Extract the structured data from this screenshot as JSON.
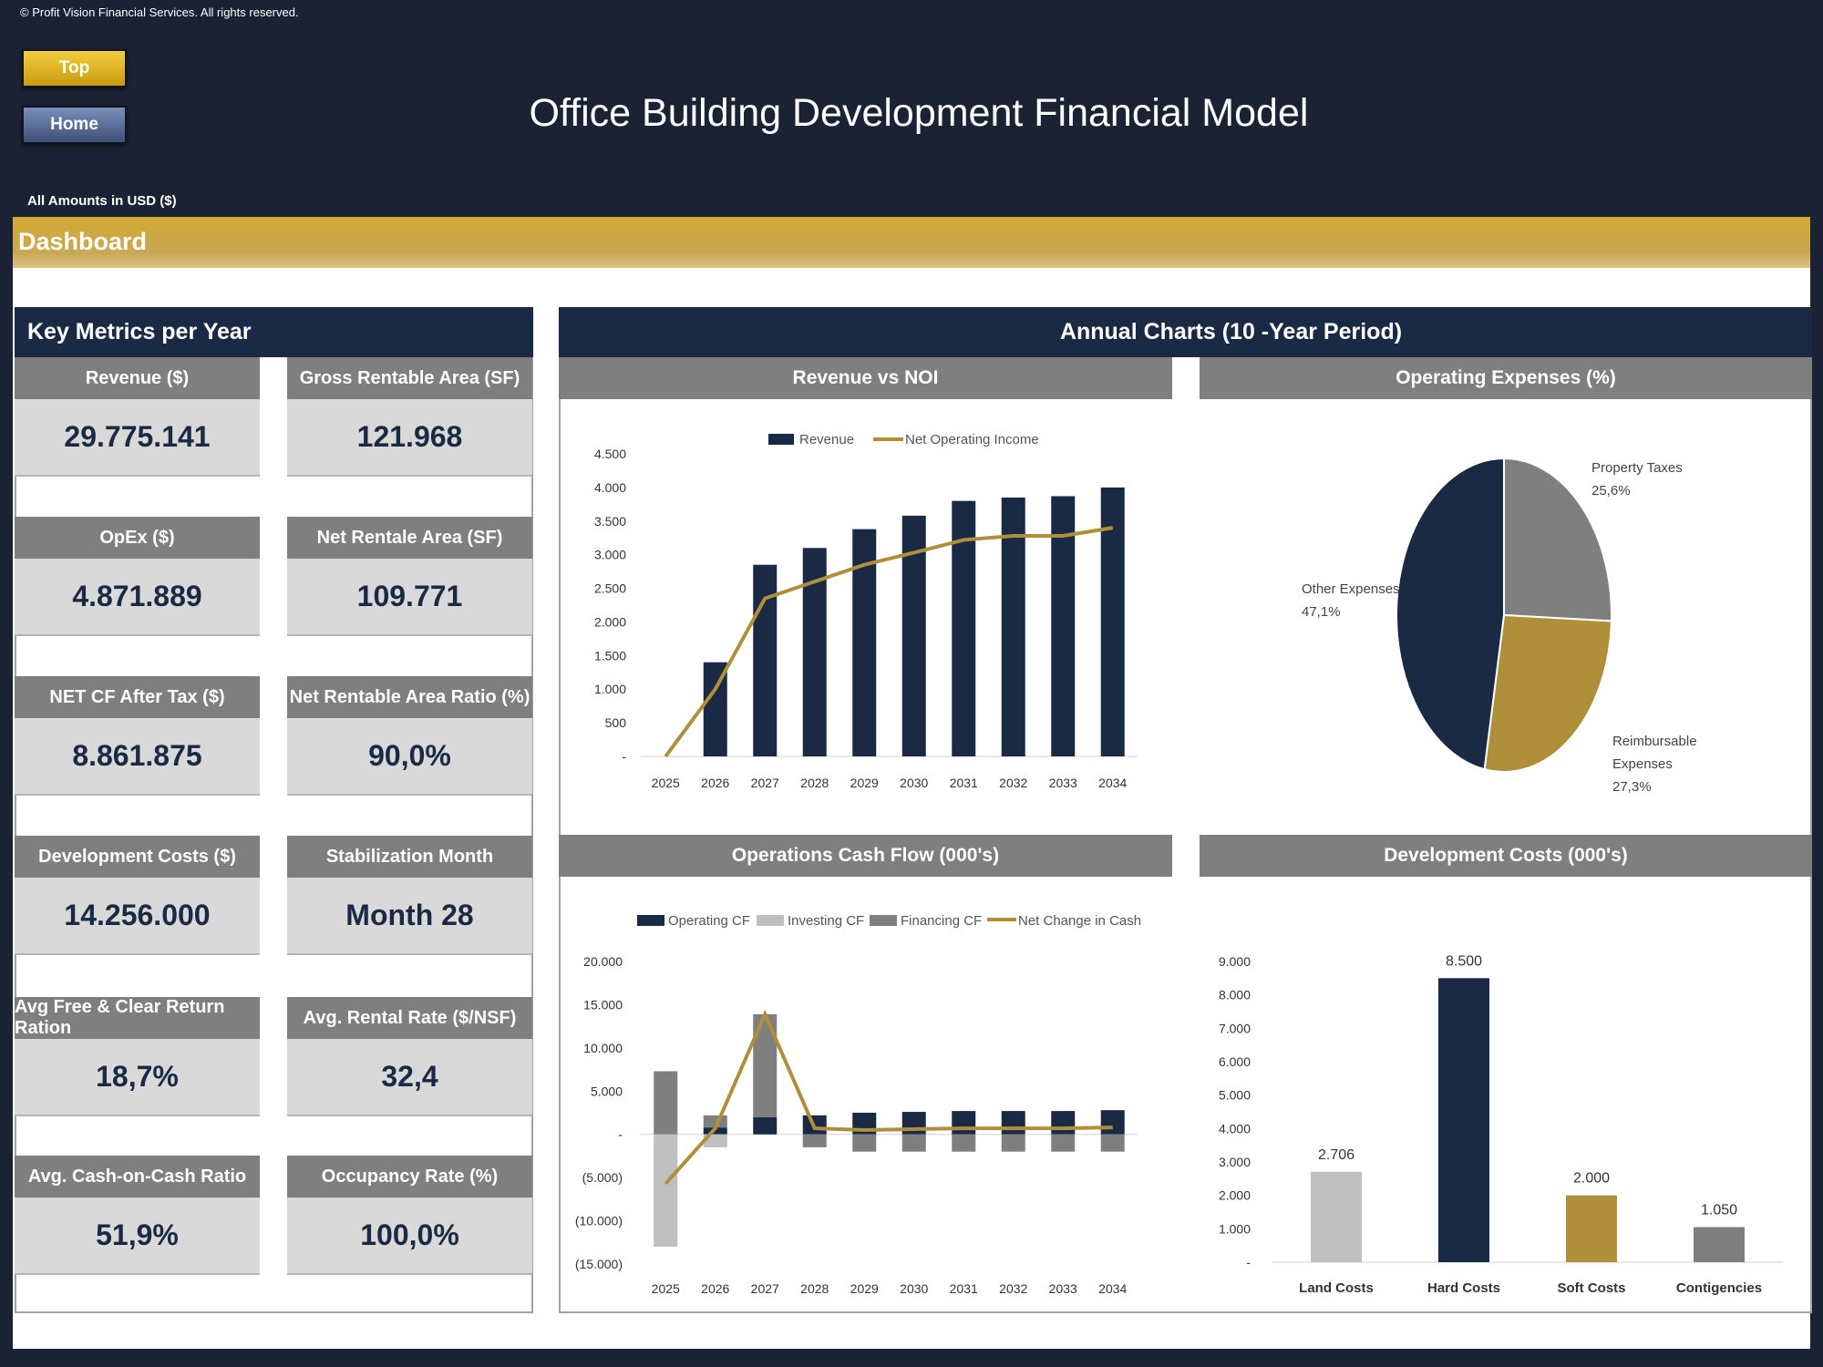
{
  "copyright": "© Profit Vision Financial Services. All rights reserved.",
  "buttons": {
    "top": "Top",
    "home": "Home"
  },
  "title": "Office Building Development Financial Model",
  "amounts_note": "All Amounts in  USD ($)",
  "dashboard_label": "Dashboard",
  "key_metrics": {
    "header": "Key Metrics per Year",
    "items": [
      {
        "label": "Revenue ($)",
        "value": "29.775.141"
      },
      {
        "label": "Gross Rentable Area (SF)",
        "value": "121.968"
      },
      {
        "label": "OpEx ($)",
        "value": "4.871.889"
      },
      {
        "label": "Net Rentale Area (SF)",
        "value": "109.771"
      },
      {
        "label": "NET CF After Tax ($)",
        "value": "8.861.875"
      },
      {
        "label": "Net Rentable Area Ratio (%)",
        "value": "90,0%"
      },
      {
        "label": "Development Costs ($)",
        "value": "14.256.000"
      },
      {
        "label": "Stabilization Month",
        "value": "Month 28"
      },
      {
        "label": "Avg Free & Clear Return Ration",
        "value": "18,7%"
      },
      {
        "label": "Avg. Rental Rate ($/NSF)",
        "value": "32,4"
      },
      {
        "label": "Avg. Cash-on-Cash Ratio",
        "value": "51,9%"
      },
      {
        "label": "Occupancy Rate (%)",
        "value": "100,0%"
      }
    ]
  },
  "annual_charts_header": "Annual Charts (10 -Year Period)",
  "colors": {
    "navy": "#1b2a44",
    "gold": "#b08f3a",
    "gray": "#7f7f7f",
    "lightgray": "#bfbfbf"
  },
  "chart_data": [
    {
      "id": "revenue_noi",
      "type": "bar",
      "title": "Revenue vs NOI",
      "categories": [
        "2025",
        "2026",
        "2027",
        "2028",
        "2029",
        "2030",
        "2031",
        "2032",
        "2033",
        "2034"
      ],
      "series": [
        {
          "name": "Revenue",
          "type": "bar",
          "values": [
            0,
            1400,
            2850,
            3100,
            3380,
            3580,
            3800,
            3850,
            3870,
            4000
          ]
        },
        {
          "name": "Net Operating Income",
          "type": "line",
          "values": [
            0,
            1000,
            2350,
            2600,
            2850,
            3030,
            3220,
            3280,
            3280,
            3400
          ]
        }
      ],
      "ylim": [
        0,
        4500
      ],
      "yticks": [
        0,
        500,
        1000,
        1500,
        2000,
        2500,
        3000,
        3500,
        4000,
        4500
      ],
      "ytick_labels": [
        "-",
        "500",
        "1.000",
        "1.500",
        "2.000",
        "2.500",
        "3.000",
        "3.500",
        "4.000",
        "4.500"
      ],
      "legend": "top"
    },
    {
      "id": "opex_pie",
      "type": "pie",
      "title": "Operating Expenses (%)",
      "slices": [
        {
          "label": "Property Taxes",
          "value": 25.6,
          "display": "25,6%"
        },
        {
          "label": "Reimbursable Expenses",
          "value": 27.3,
          "display": "27,3%"
        },
        {
          "label": "Other Expenses",
          "value": 47.1,
          "display": "47,1%"
        }
      ]
    },
    {
      "id": "ops_cash_flow",
      "type": "bar",
      "title": "Operations Cash Flow (000's)",
      "categories": [
        "2025",
        "2026",
        "2027",
        "2028",
        "2029",
        "2030",
        "2031",
        "2032",
        "2033",
        "2034"
      ],
      "series": [
        {
          "name": "Operating CF",
          "type": "bar",
          "values": [
            0,
            800,
            2000,
            2200,
            2500,
            2600,
            2700,
            2700,
            2700,
            2800
          ]
        },
        {
          "name": "Investing CF",
          "type": "bar",
          "values": [
            -13000,
            -1500,
            0,
            0,
            0,
            0,
            0,
            0,
            0,
            0
          ]
        },
        {
          "name": "Financing CF",
          "type": "bar",
          "values": [
            7300,
            1400,
            11900,
            -1500,
            -2000,
            -2000,
            -2000,
            -2000,
            -2000,
            -2000
          ]
        },
        {
          "name": "Net Change in Cash",
          "type": "line",
          "values": [
            -5700,
            700,
            13900,
            700,
            500,
            600,
            700,
            700,
            700,
            800
          ]
        }
      ],
      "ylim": [
        -15000,
        20000
      ],
      "yticks": [
        -15000,
        -10000,
        -5000,
        0,
        5000,
        10000,
        15000,
        20000
      ],
      "ytick_labels": [
        "(15.000)",
        "(10.000)",
        "(5.000)",
        "-",
        "5.000",
        "10.000",
        "15.000",
        "20.000"
      ],
      "legend": "top"
    },
    {
      "id": "dev_costs",
      "type": "bar",
      "title": "Development Costs (000's)",
      "categories": [
        "Land Costs",
        "Hard Costs",
        "Soft Costs",
        "Contigencies"
      ],
      "values": [
        2706,
        8500,
        2000,
        1050
      ],
      "value_labels": [
        "2.706",
        "8.500",
        "2.000",
        "1.050"
      ],
      "ylim": [
        0,
        9000
      ],
      "yticks": [
        0,
        1000,
        2000,
        3000,
        4000,
        5000,
        6000,
        7000,
        8000,
        9000
      ],
      "ytick_labels": [
        "-",
        "1.000",
        "2.000",
        "3.000",
        "4.000",
        "5.000",
        "6.000",
        "7.000",
        "8.000",
        "9.000"
      ],
      "bar_colors": [
        "#bfbfbf",
        "#1b2a44",
        "#b08f3a",
        "#7f7f7f"
      ]
    }
  ]
}
